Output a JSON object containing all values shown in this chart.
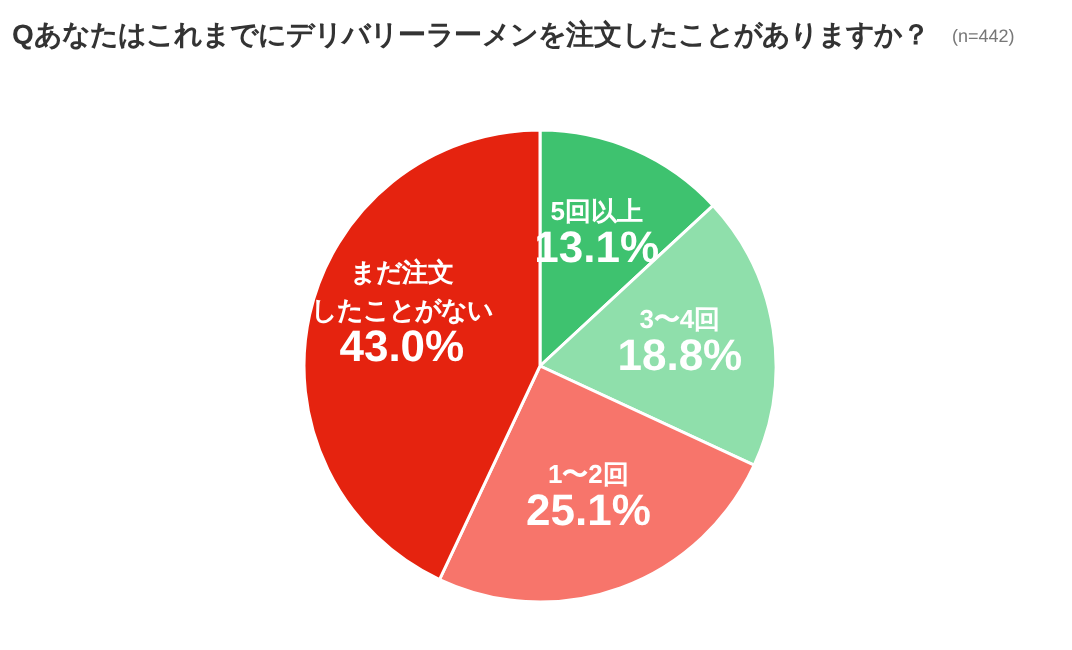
{
  "chart_data": {
    "type": "pie",
    "title": "Qあなたはこれまでにデリバリーラーメンを注文したことがありますか？",
    "subtitle": "(n=442)",
    "categories": [
      "5回以上",
      "3〜4回",
      "1〜2回",
      "まだ注文したことがない"
    ],
    "values": [
      13.1,
      18.8,
      25.1,
      43.0
    ],
    "value_labels": [
      "13.1%",
      "18.8%",
      "25.1%",
      "43.0%"
    ],
    "colors": [
      "#3ec26f",
      "#8fdfab",
      "#f7756b",
      "#e5230f"
    ]
  }
}
